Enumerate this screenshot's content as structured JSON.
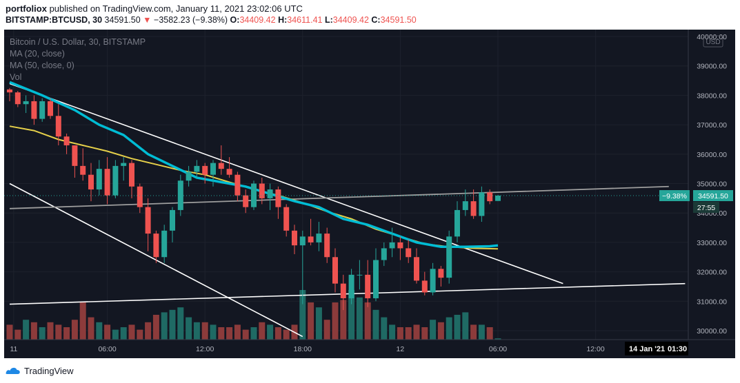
{
  "header": {
    "user": "portfoliox",
    "published_text": "published on TradingView.com, January 11, 2021 23:02:06 UTC",
    "symbol": "BITSTAMP:BTCUSD, 30",
    "last": "34591.50",
    "change_arrow": "▼",
    "change": "−3582.23 (−9.38%)",
    "o_label": "O:",
    "o_val": "34409.42",
    "h_label": "H:",
    "h_val": "34611.41",
    "l_label": "L:",
    "l_val": "34409.42",
    "c_label": "C:",
    "c_val": "34591.50"
  },
  "legend": {
    "title": "Bitcoin / U.S. Dollar, 30, BITSTAMP",
    "ma20": "MA (20, close)",
    "ma50": "MA (50, close, 0)",
    "vol": "Vol"
  },
  "price_axis": {
    "currency": "USD",
    "ticks": [
      "40000.00",
      "39000.00",
      "38000.00",
      "37000.00",
      "36000.00",
      "35000.00",
      "34000.00",
      "33000.00",
      "32000.00",
      "31000.00",
      "30000.00"
    ],
    "change_badge": "−9.38%",
    "last_price_badge": "34591.50",
    "countdown": "27:55"
  },
  "time_axis": {
    "ticks": [
      {
        "label": "11",
        "t": 0.5
      },
      {
        "label": "06:00",
        "t": 12
      },
      {
        "label": "12:00",
        "t": 24
      },
      {
        "label": "18:00",
        "t": 36
      },
      {
        "label": "12",
        "t": 48
      },
      {
        "label": "06:00",
        "t": 60
      },
      {
        "label": "12:00",
        "t": 72
      }
    ],
    "current_date": "14 Jan '21",
    "current_time": "01:30"
  },
  "footer": {
    "brand": "TradingView"
  },
  "colors": {
    "bg": "#131722",
    "up": "#26a69a",
    "down": "#ef5350",
    "ma20": "#00bcd4",
    "ma50": "#e6d04a",
    "trend": "#ffffff",
    "resistance": "#9e9e9e",
    "vol_up": "#1f6a64",
    "vol_down": "#8c3b3b"
  },
  "chart_data": {
    "type": "candlestick",
    "title": "Bitcoin / U.S. Dollar, 30, BITSTAMP",
    "interval": "30",
    "ylim": [
      29800,
      40500
    ],
    "x_unit": "30-minute bars from 2021-01-11 00:00 UTC",
    "candles": [
      [
        38200,
        38250,
        37800,
        38100
      ],
      [
        38100,
        38150,
        37600,
        37700
      ],
      [
        37700,
        38000,
        37400,
        37800
      ],
      [
        37800,
        38000,
        37000,
        37200
      ],
      [
        37200,
        37900,
        37100,
        37800
      ],
      [
        37800,
        37900,
        37200,
        37300
      ],
      [
        37300,
        37700,
        36300,
        36600
      ],
      [
        36600,
        36700,
        36000,
        36300
      ],
      [
        36300,
        36300,
        35200,
        35600
      ],
      [
        35600,
        36200,
        35100,
        35300
      ],
      [
        35300,
        35700,
        34400,
        34800
      ],
      [
        34800,
        35800,
        34600,
        35500
      ],
      [
        35500,
        35900,
        34300,
        34600
      ],
      [
        34600,
        35800,
        34500,
        35600
      ],
      [
        35600,
        35900,
        35100,
        35700
      ],
      [
        35700,
        35800,
        34500,
        34900
      ],
      [
        34900,
        35000,
        34000,
        34200
      ],
      [
        34200,
        34500,
        32700,
        33300
      ],
      [
        33300,
        33400,
        32300,
        32500
      ],
      [
        32500,
        33600,
        32300,
        33400
      ],
      [
        33400,
        34200,
        33000,
        34100
      ],
      [
        34100,
        35300,
        33900,
        35100
      ],
      [
        35100,
        35600,
        34900,
        35400
      ],
      [
        35400,
        35800,
        35200,
        35600
      ],
      [
        35600,
        35700,
        35000,
        35300
      ],
      [
        35300,
        35800,
        34900,
        35700
      ],
      [
        35700,
        36300,
        35300,
        35500
      ],
      [
        35500,
        35900,
        35200,
        35300
      ],
      [
        35300,
        35400,
        34400,
        34600
      ],
      [
        34600,
        34800,
        34000,
        34200
      ],
      [
        34200,
        35100,
        34100,
        35000
      ],
      [
        35000,
        35200,
        34300,
        34500
      ],
      [
        34500,
        35000,
        34100,
        34800
      ],
      [
        34800,
        34900,
        33800,
        34200
      ],
      [
        34200,
        34300,
        33200,
        33400
      ],
      [
        33400,
        33600,
        32600,
        32900
      ],
      [
        32900,
        33400,
        30900,
        33200
      ],
      [
        33200,
        33800,
        32900,
        33000
      ],
      [
        33000,
        33700,
        32700,
        33300
      ],
      [
        33300,
        33500,
        32300,
        32500
      ],
      [
        32500,
        32800,
        31300,
        31600
      ],
      [
        31600,
        31900,
        30700,
        31100
      ],
      [
        31100,
        32100,
        30900,
        31900
      ],
      [
        31900,
        32400,
        31400,
        31900
      ],
      [
        31900,
        32400,
        30800,
        31100
      ],
      [
        31100,
        32800,
        31000,
        32400
      ],
      [
        32400,
        33000,
        32200,
        32800
      ],
      [
        32800,
        33500,
        32500,
        33000
      ],
      [
        33000,
        33200,
        32400,
        32800
      ],
      [
        32800,
        33100,
        32300,
        32500
      ],
      [
        32500,
        32800,
        31600,
        31700
      ],
      [
        31700,
        32000,
        31200,
        31300
      ],
      [
        31300,
        32300,
        31200,
        32100
      ],
      [
        32100,
        32200,
        31500,
        31800
      ],
      [
        31800,
        33400,
        31600,
        33200
      ],
      [
        33200,
        34400,
        33000,
        34100
      ],
      [
        34100,
        34800,
        33900,
        34400
      ],
      [
        34400,
        34800,
        33800,
        33900
      ],
      [
        33900,
        34900,
        33700,
        34700
      ],
      [
        34700,
        34800,
        34300,
        34400
      ],
      [
        34409.42,
        34611.41,
        34409.42,
        34591.5
      ]
    ],
    "volume": [
      12,
      8,
      16,
      14,
      10,
      14,
      12,
      10,
      16,
      30,
      18,
      14,
      12,
      8,
      10,
      12,
      8,
      14,
      20,
      22,
      24,
      26,
      18,
      14,
      14,
      12,
      10,
      10,
      12,
      8,
      10,
      14,
      12,
      10,
      8,
      12,
      40,
      30,
      26,
      16,
      30,
      32,
      40,
      34,
      30,
      24,
      18,
      12,
      10,
      10,
      12,
      10,
      16,
      14,
      18,
      20,
      22,
      12,
      12,
      10,
      1
    ],
    "ma20": [
      [
        0,
        38450
      ],
      [
        4,
        38000
      ],
      [
        8,
        37500
      ],
      [
        11,
        37000
      ],
      [
        14,
        36650
      ],
      [
        17,
        36000
      ],
      [
        20,
        35600
      ],
      [
        23,
        35200
      ],
      [
        26,
        35050
      ],
      [
        29,
        34900
      ],
      [
        32,
        34650
      ],
      [
        35,
        34400
      ],
      [
        38,
        34200
      ],
      [
        41,
        33800
      ],
      [
        44,
        33600
      ],
      [
        47,
        33300
      ],
      [
        50,
        33000
      ],
      [
        53,
        32850
      ],
      [
        56,
        32850
      ],
      [
        59,
        32870
      ],
      [
        60,
        32900
      ]
    ],
    "ma50": [
      [
        0,
        36950
      ],
      [
        3,
        36800
      ],
      [
        6,
        36500
      ],
      [
        9,
        36300
      ],
      [
        12,
        36100
      ],
      [
        15,
        35850
      ],
      [
        18,
        35650
      ],
      [
        21,
        35450
      ],
      [
        24,
        35300
      ],
      [
        27,
        35050
      ],
      [
        30,
        34800
      ],
      [
        33,
        34600
      ],
      [
        36,
        34350
      ],
      [
        39,
        34050
      ],
      [
        42,
        33800
      ],
      [
        45,
        33450
      ],
      [
        48,
        33200
      ],
      [
        51,
        32950
      ],
      [
        54,
        32850
      ],
      [
        57,
        32800
      ],
      [
        60,
        32780
      ]
    ]
  },
  "drawings": {
    "trendlines": [
      {
        "t1": 0,
        "p1": 38400,
        "t2": 68,
        "p2": 31600
      },
      {
        "t1": 0,
        "p1": 35000,
        "t2": 36,
        "p2": 29800
      },
      {
        "t1": 0,
        "p1": 30900,
        "t2": 83,
        "p2": 31600
      }
    ],
    "resistance": {
      "t1": 0,
      "p1": 34150,
      "t2": 81,
      "p2": 34900
    }
  }
}
